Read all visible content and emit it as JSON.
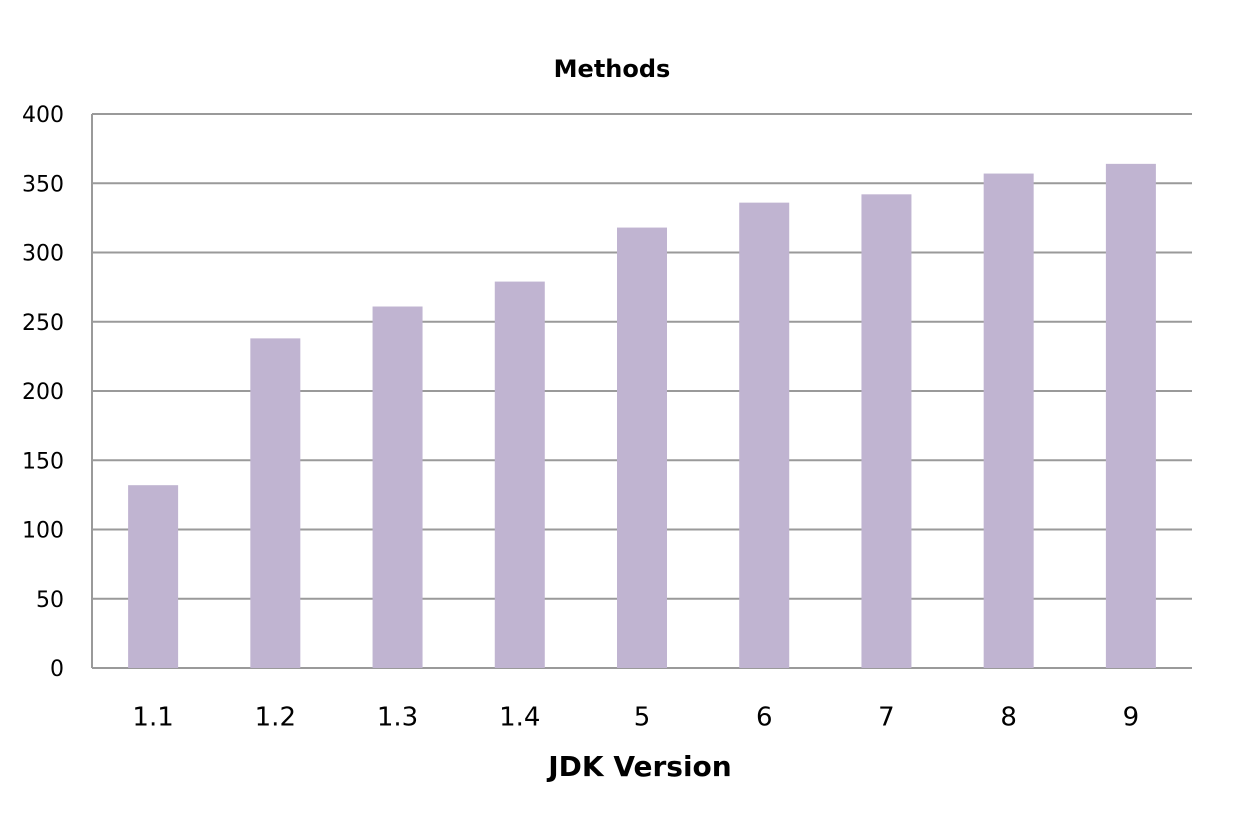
{
  "chart_data": {
    "type": "bar",
    "title": "Methods",
    "x_label": "JDK Version",
    "categories": [
      "1.1",
      "1.2",
      "1.3",
      "1.4",
      "5",
      "6",
      "7",
      "8",
      "9"
    ],
    "values": [
      132,
      238,
      261,
      279,
      318,
      336,
      342,
      357,
      364
    ],
    "color": "#c0b4d1",
    "ylim": [
      0,
      400
    ],
    "yticks": [
      0,
      50,
      100,
      150,
      200,
      250,
      300,
      350,
      400
    ],
    "grid": true
  }
}
